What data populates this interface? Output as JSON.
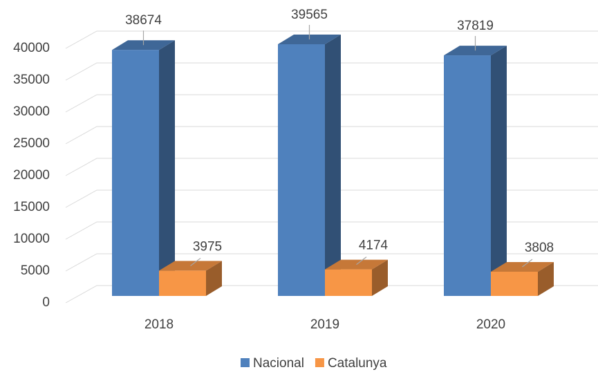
{
  "chart_data": {
    "type": "bar3d",
    "categories": [
      "2018",
      "2019",
      "2020"
    ],
    "series": [
      {
        "name": "Nacional",
        "color": "#4f81bd",
        "values": [
          38674,
          39565,
          37819
        ]
      },
      {
        "name": "Catalunya",
        "color": "#f79646",
        "values": [
          3975,
          4174,
          3808
        ]
      }
    ],
    "ylim": [
      0,
      40000
    ],
    "yticks": [
      0,
      5000,
      10000,
      15000,
      20000,
      25000,
      30000,
      35000,
      40000
    ],
    "grid": true,
    "legend": "bottom"
  }
}
